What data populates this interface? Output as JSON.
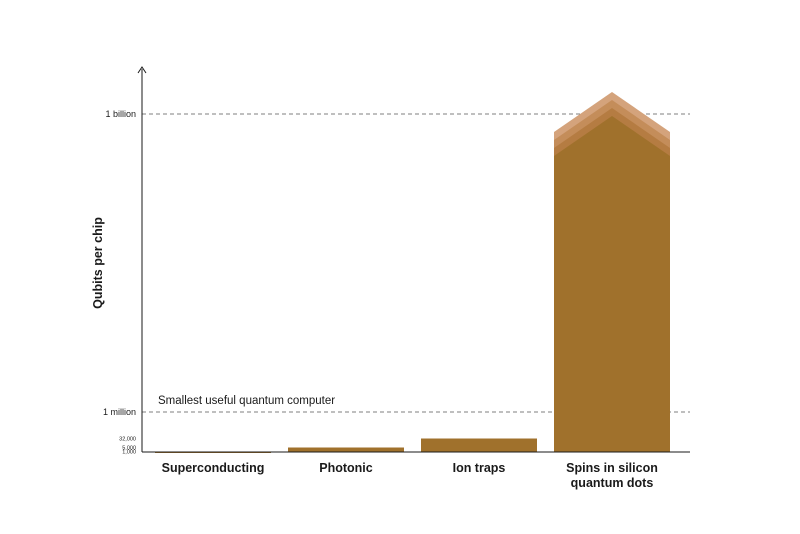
{
  "chart_data": {
    "type": "bar",
    "title": "",
    "xlabel": "",
    "ylabel": "Qubits per chip",
    "categories": [
      "Superconducting",
      "Photonic",
      "Ion traps",
      "Spins in silicon quantum dots"
    ],
    "category_lines": [
      [
        "Superconducting"
      ],
      [
        "Photonic"
      ],
      [
        "Ion traps"
      ],
      [
        "Spins in silicon",
        "quantum dots"
      ]
    ],
    "values": [
      1000,
      5000,
      32000,
      1000000000
    ],
    "y_ticks": [
      {
        "value": 1000,
        "label": "1,000"
      },
      {
        "value": 5000,
        "label": "5,000"
      },
      {
        "value": 32000,
        "label": "32,000"
      },
      {
        "value": 1000000,
        "label": "1 million"
      },
      {
        "value": 1000000000,
        "label": "1 billion"
      }
    ],
    "reference_lines": [
      {
        "value": 1000000,
        "label": "Smallest useful quantum computer"
      },
      {
        "value": 1000000000,
        "label": ""
      }
    ],
    "grid": false,
    "legend": "none",
    "bar_color": "#a0712c",
    "arrow_colors": [
      "#d4a37c",
      "#c48d5a",
      "#b57c42"
    ]
  }
}
